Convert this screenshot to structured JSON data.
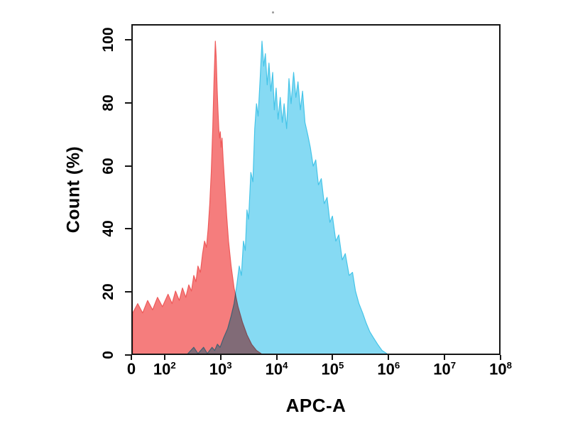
{
  "chart_data": {
    "type": "area",
    "subtype": "flow-cytometry-overlay-histogram",
    "title": "",
    "xlabel": "APC-A",
    "ylabel": "Count (%)",
    "x_scale": "log10 decades 10^2 to 10^8 with zero at origin",
    "grid": false,
    "legend": "none",
    "ylim": [
      0,
      105
    ],
    "y_ticks": [
      {
        "text": "100",
        "value": 100
      },
      {
        "text": "80",
        "value": 80
      },
      {
        "text": "60",
        "value": 60
      },
      {
        "text": "40",
        "value": 40
      },
      {
        "text": "20",
        "value": 20
      },
      {
        "text": "0",
        "value": 0
      }
    ],
    "x_ticks": [
      {
        "text": "0",
        "value": 0
      },
      {
        "text": "10",
        "sup": "2",
        "value": 100
      },
      {
        "text": "10",
        "sup": "3",
        "value": 1000
      },
      {
        "text": "10",
        "sup": "4",
        "value": 10000
      },
      {
        "text": "10",
        "sup": "5",
        "value": 100000
      },
      {
        "text": "10",
        "sup": "6",
        "value": 1000000
      },
      {
        "text": "10",
        "sup": "7",
        "value": 10000000
      },
      {
        "text": "10",
        "sup": "8",
        "value": 100000000
      }
    ],
    "series": [
      {
        "name": "red-histogram",
        "fill": "#f57d7d",
        "stroke": "#ee5a5a",
        "blend": false,
        "points": [
          [
            0,
            13
          ],
          [
            15,
            16
          ],
          [
            30,
            13
          ],
          [
            45,
            17
          ],
          [
            60,
            14
          ],
          [
            75,
            18
          ],
          [
            90,
            15
          ],
          [
            110,
            19
          ],
          [
            130,
            16
          ],
          [
            150,
            20
          ],
          [
            175,
            17
          ],
          [
            200,
            21
          ],
          [
            230,
            18
          ],
          [
            260,
            22
          ],
          [
            290,
            20
          ],
          [
            320,
            25
          ],
          [
            350,
            23
          ],
          [
            380,
            28
          ],
          [
            420,
            26
          ],
          [
            460,
            32
          ],
          [
            500,
            36
          ],
          [
            540,
            34
          ],
          [
            580,
            40
          ],
          [
            620,
            48
          ],
          [
            660,
            58
          ],
          [
            700,
            72
          ],
          [
            740,
            88
          ],
          [
            780,
            100
          ],
          [
            810,
            95
          ],
          [
            840,
            85
          ],
          [
            870,
            78
          ],
          [
            900,
            72
          ],
          [
            930,
            69
          ],
          [
            960,
            71
          ],
          [
            990,
            66
          ],
          [
            1030,
            69
          ],
          [
            1080,
            62
          ],
          [
            1150,
            54
          ],
          [
            1250,
            44
          ],
          [
            1350,
            36
          ],
          [
            1500,
            28
          ],
          [
            1700,
            21
          ],
          [
            2000,
            15
          ],
          [
            2400,
            10
          ],
          [
            2900,
            6
          ],
          [
            3500,
            3
          ],
          [
            4300,
            1
          ],
          [
            5200,
            0
          ]
        ]
      },
      {
        "name": "blue-histogram",
        "fill": "#86daf3",
        "stroke": "#44c4e8",
        "blend": true,
        "points": [
          [
            250,
            0
          ],
          [
            320,
            2
          ],
          [
            380,
            0
          ],
          [
            480,
            2
          ],
          [
            560,
            0
          ],
          [
            680,
            2
          ],
          [
            760,
            1
          ],
          [
            850,
            3
          ],
          [
            950,
            2
          ],
          [
            1100,
            5
          ],
          [
            1300,
            8
          ],
          [
            1500,
            12
          ],
          [
            1700,
            16
          ],
          [
            1900,
            22
          ],
          [
            2100,
            28
          ],
          [
            2300,
            25
          ],
          [
            2500,
            36
          ],
          [
            2700,
            33
          ],
          [
            2900,
            46
          ],
          [
            3100,
            43
          ],
          [
            3400,
            58
          ],
          [
            3700,
            55
          ],
          [
            4000,
            72
          ],
          [
            4300,
            80
          ],
          [
            4600,
            76
          ],
          [
            5000,
            88
          ],
          [
            5400,
            100
          ],
          [
            5800,
            92
          ],
          [
            6200,
            96
          ],
          [
            6700,
            86
          ],
          [
            7200,
            93
          ],
          [
            7800,
            84
          ],
          [
            8400,
            90
          ],
          [
            9000,
            78
          ],
          [
            9700,
            85
          ],
          [
            10500,
            75
          ],
          [
            11500,
            82
          ],
          [
            12500,
            74
          ],
          [
            13500,
            80
          ],
          [
            15000,
            72
          ],
          [
            16500,
            88
          ],
          [
            18000,
            80
          ],
          [
            20000,
            90
          ],
          [
            22000,
            82
          ],
          [
            24000,
            87
          ],
          [
            26500,
            78
          ],
          [
            29000,
            84
          ],
          [
            32000,
            74
          ],
          [
            36000,
            70
          ],
          [
            40000,
            66
          ],
          [
            45000,
            60
          ],
          [
            50000,
            62
          ],
          [
            56000,
            54
          ],
          [
            63000,
            56
          ],
          [
            71000,
            48
          ],
          [
            80000,
            50
          ],
          [
            90000,
            42
          ],
          [
            100000,
            44
          ],
          [
            115000,
            36
          ],
          [
            130000,
            38
          ],
          [
            150000,
            30
          ],
          [
            170000,
            32
          ],
          [
            200000,
            25
          ],
          [
            230000,
            26
          ],
          [
            260000,
            20
          ],
          [
            300000,
            16
          ],
          [
            350000,
            13
          ],
          [
            400000,
            10
          ],
          [
            470000,
            7
          ],
          [
            550000,
            5
          ],
          [
            650000,
            3
          ],
          [
            780000,
            1
          ],
          [
            950000,
            0
          ]
        ]
      }
    ],
    "colors": {
      "axis": "#151515",
      "red_fill": "#f57d7d",
      "blue_fill": "#86daf3",
      "overlap": "multiply-blend"
    }
  }
}
